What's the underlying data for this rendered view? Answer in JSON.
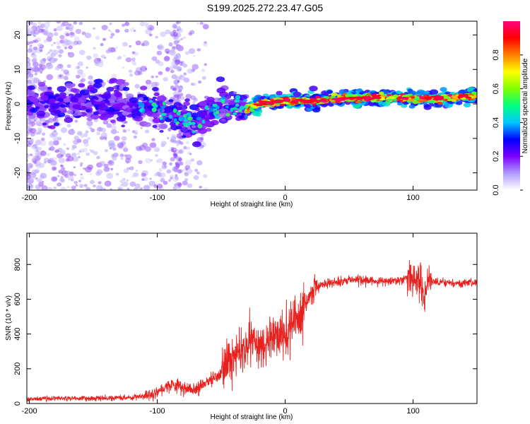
{
  "title": "S199.2025.272.23.47.G05",
  "chart_data": [
    {
      "type": "heatmap",
      "name": "spectrogram",
      "xlabel": "Height of straight line (km)",
      "ylabel": "Frequency (Hz)",
      "xlim": [
        -202,
        150
      ],
      "ylim": [
        -25,
        24
      ],
      "xticks": [
        -200,
        -100,
        0,
        100
      ],
      "yticks": [
        -20,
        -10,
        0,
        10,
        20
      ],
      "colorbar": {
        "label": "Normalized spectral amplitude",
        "range": [
          0,
          1
        ],
        "ticks": [
          "0.0",
          "0.2",
          "0.4",
          "0.6",
          "0.8"
        ],
        "colors": [
          "#ffffff",
          "#b09bff",
          "#7a00ff",
          "#0000ff",
          "#00c8ff",
          "#00ff80",
          "#80ff00",
          "#ffff00",
          "#ff8000",
          "#ff0000",
          "#ff0080"
        ]
      },
      "ridge": {
        "description_points_km_hz": [
          [
            -200,
            0
          ],
          [
            -150,
            0.5
          ],
          [
            -110,
            -1
          ],
          [
            -95,
            -2
          ],
          [
            -80,
            -4
          ],
          [
            -70,
            -6
          ],
          [
            -60,
            -3
          ],
          [
            -50,
            -1
          ],
          [
            -40,
            0
          ],
          [
            -30,
            -1.5
          ],
          [
            -20,
            0
          ],
          [
            -10,
            0.5
          ],
          [
            0,
            1
          ],
          [
            20,
            0.8
          ],
          [
            50,
            1.5
          ],
          [
            80,
            2
          ],
          [
            100,
            1.5
          ],
          [
            120,
            1.5
          ],
          [
            150,
            2.5
          ]
        ],
        "high_amplitude_region_km": [
          -30,
          150
        ]
      }
    },
    {
      "type": "line",
      "name": "snr",
      "xlabel": "Height of straight line (km)",
      "ylabel": "SNR (10 * v/v)",
      "xlim": [
        -202,
        150
      ],
      "ylim": [
        0,
        980
      ],
      "xticks": [
        -200,
        -100,
        0,
        100
      ],
      "yticks": [
        0,
        200,
        400,
        600,
        800
      ],
      "color": "#e8201e",
      "series": [
        {
          "name": "SNR",
          "x": [
            -200,
            -180,
            -160,
            -140,
            -120,
            -110,
            -100,
            -90,
            -80,
            -70,
            -60,
            -50,
            -45,
            -40,
            -35,
            -30,
            -25,
            -20,
            -15,
            -10,
            -5,
            0,
            5,
            10,
            15,
            20,
            25,
            30,
            40,
            50,
            60,
            70,
            80,
            90,
            95,
            100,
            105,
            108,
            110,
            112,
            115,
            120,
            130,
            140,
            150
          ],
          "values": [
            25,
            30,
            30,
            30,
            35,
            45,
            70,
            110,
            90,
            80,
            130,
            170,
            230,
            260,
            310,
            320,
            350,
            330,
            370,
            380,
            390,
            410,
            440,
            480,
            560,
            620,
            670,
            690,
            700,
            715,
            710,
            705,
            705,
            710,
            720,
            715,
            730,
            600,
            650,
            720,
            700,
            700,
            695,
            690,
            695
          ]
        }
      ]
    }
  ]
}
